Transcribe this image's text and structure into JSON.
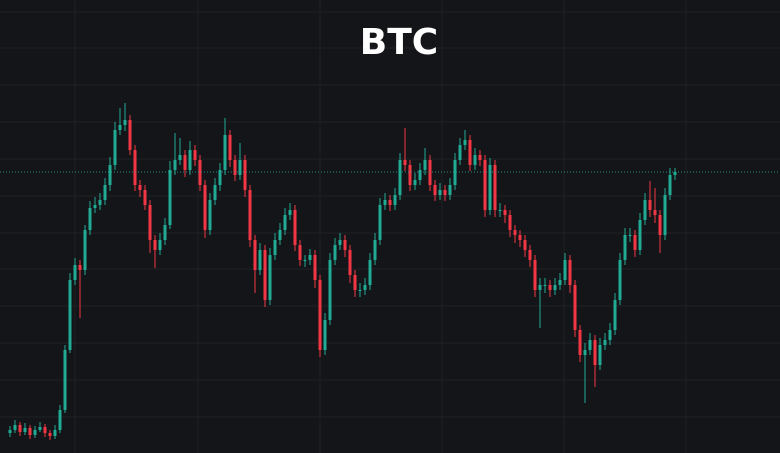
{
  "chart_data": {
    "type": "candlestick",
    "title": "BTC",
    "open": [
      20,
      23,
      28,
      21,
      25,
      18,
      23,
      26,
      20,
      17,
      23,
      43,
      103,
      173,
      188,
      183,
      223,
      245,
      248,
      253,
      268,
      288,
      323,
      328,
      333,
      303,
      268,
      263,
      248,
      213,
      203,
      213,
      228,
      283,
      293,
      298,
      283,
      303,
      293,
      268,
      223,
      253,
      268,
      283,
      318,
      293,
      278,
      293,
      263,
      213,
      183,
      203,
      153,
      198,
      213,
      223,
      238,
      243,
      208,
      193,
      193,
      198,
      173,
      103,
      133,
      193,
      208,
      213,
      203,
      178,
      163,
      163,
      168,
      193,
      213,
      248,
      253,
      248,
      258,
      293,
      288,
      268,
      273,
      283,
      293,
      268,
      258,
      263,
      258,
      268,
      293,
      308,
      313,
      288,
      298,
      293,
      243,
      288,
      243,
      243,
      238,
      223,
      218,
      213,
      203,
      193,
      163,
      168,
      168,
      163,
      168,
      173,
      193,
      168,
      123,
      98,
      103,
      113,
      88,
      108,
      113,
      123,
      153,
      193,
      218,
      218,
      203,
      233,
      253,
      243,
      238,
      218,
      258,
      278
    ],
    "high": [
      27,
      33,
      31,
      30,
      28,
      27,
      31,
      29,
      23,
      28,
      48,
      108,
      180,
      195,
      193,
      228,
      252,
      256,
      260,
      275,
      296,
      331,
      345,
      350,
      338,
      308,
      273,
      268,
      253,
      218,
      220,
      235,
      292,
      320,
      315,
      303,
      312,
      308,
      298,
      273,
      260,
      275,
      290,
      335,
      323,
      298,
      310,
      298,
      268,
      218,
      210,
      208,
      205,
      220,
      230,
      245,
      250,
      248,
      213,
      198,
      204,
      203,
      178,
      140,
      200,
      215,
      220,
      218,
      208,
      183,
      170,
      175,
      200,
      220,
      255,
      260,
      258,
      265,
      300,
      325,
      293,
      280,
      290,
      305,
      298,
      273,
      270,
      268,
      275,
      300,
      315,
      323,
      318,
      305,
      303,
      298,
      295,
      293,
      250,
      248,
      243,
      228,
      223,
      218,
      208,
      198,
      175,
      175,
      173,
      175,
      180,
      200,
      198,
      173,
      128,
      110,
      120,
      118,
      115,
      120,
      130,
      160,
      200,
      225,
      225,
      223,
      240,
      260,
      272,
      265,
      243,
      265,
      285,
      285
    ],
    "low": [
      16,
      20,
      17,
      18,
      14,
      15,
      21,
      16,
      13,
      14,
      20,
      40,
      100,
      168,
      135,
      178,
      218,
      240,
      243,
      248,
      262,
      283,
      318,
      322,
      298,
      262,
      256,
      243,
      200,
      185,
      198,
      208,
      224,
      278,
      288,
      276,
      278,
      287,
      262,
      215,
      218,
      248,
      262,
      278,
      286,
      272,
      273,
      256,
      206,
      160,
      178,
      146,
      148,
      193,
      208,
      218,
      233,
      202,
      187,
      186,
      188,
      165,
      96,
      98,
      128,
      188,
      203,
      196,
      170,
      156,
      156,
      158,
      163,
      188,
      208,
      243,
      242,
      243,
      253,
      282,
      262,
      263,
      268,
      278,
      262,
      252,
      253,
      252,
      253,
      263,
      288,
      303,
      282,
      283,
      287,
      236,
      238,
      236,
      236,
      230,
      216,
      210,
      206,
      196,
      186,
      156,
      125,
      160,
      156,
      158,
      163,
      168,
      160,
      116,
      91,
      50,
      98,
      66,
      83,
      103,
      108,
      118,
      148,
      188,
      211,
      196,
      198,
      228,
      236,
      230,
      200,
      213,
      253,
      273
    ],
    "close": [
      23,
      28,
      21,
      25,
      18,
      23,
      26,
      20,
      17,
      23,
      43,
      103,
      173,
      188,
      183,
      223,
      245,
      248,
      253,
      268,
      288,
      323,
      328,
      333,
      303,
      268,
      263,
      248,
      213,
      203,
      213,
      228,
      283,
      293,
      298,
      283,
      303,
      293,
      268,
      223,
      253,
      268,
      283,
      318,
      293,
      278,
      293,
      263,
      213,
      183,
      203,
      153,
      198,
      213,
      223,
      238,
      243,
      208,
      193,
      193,
      198,
      173,
      103,
      133,
      193,
      208,
      213,
      203,
      178,
      163,
      163,
      168,
      193,
      213,
      248,
      253,
      248,
      258,
      293,
      288,
      268,
      273,
      283,
      293,
      268,
      258,
      263,
      258,
      268,
      293,
      308,
      313,
      288,
      298,
      293,
      243,
      288,
      243,
      243,
      238,
      223,
      218,
      213,
      203,
      193,
      163,
      168,
      168,
      163,
      168,
      173,
      193,
      168,
      123,
      98,
      103,
      113,
      88,
      108,
      113,
      123,
      153,
      193,
      218,
      218,
      203,
      233,
      253,
      243,
      238,
      218,
      258,
      278,
      281
    ],
    "up_color": "#22ab94",
    "down_color": "#f23645",
    "ylim": [
      0,
      453
    ]
  }
}
